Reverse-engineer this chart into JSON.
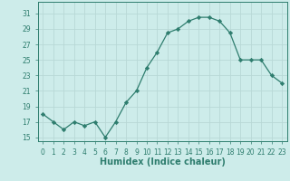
{
  "x": [
    0,
    1,
    2,
    3,
    4,
    5,
    6,
    7,
    8,
    9,
    10,
    11,
    12,
    13,
    14,
    15,
    16,
    17,
    18,
    19,
    20,
    21,
    22,
    23
  ],
  "y": [
    18,
    17,
    16,
    17,
    16.5,
    17,
    15,
    17,
    19.5,
    21,
    24,
    26,
    28.5,
    29,
    30,
    30.5,
    30.5,
    30,
    28.5,
    25,
    25,
    25,
    23,
    22
  ],
  "line_color": "#2e7d6e",
  "marker_color": "#2e7d6e",
  "bg_color": "#cdecea",
  "grid_color_major": "#b8d8d6",
  "grid_color_minor": "#b8d8d6",
  "xlabel": "Humidex (Indice chaleur)",
  "ylim": [
    14.5,
    32.5
  ],
  "xlim": [
    -0.5,
    23.5
  ],
  "yticks": [
    15,
    17,
    19,
    21,
    23,
    25,
    27,
    29,
    31
  ],
  "xticks": [
    0,
    1,
    2,
    3,
    4,
    5,
    6,
    7,
    8,
    9,
    10,
    11,
    12,
    13,
    14,
    15,
    16,
    17,
    18,
    19,
    20,
    21,
    22,
    23
  ],
  "tick_fontsize": 5.5,
  "xlabel_fontsize": 7,
  "linewidth": 0.9,
  "markersize": 2.2
}
